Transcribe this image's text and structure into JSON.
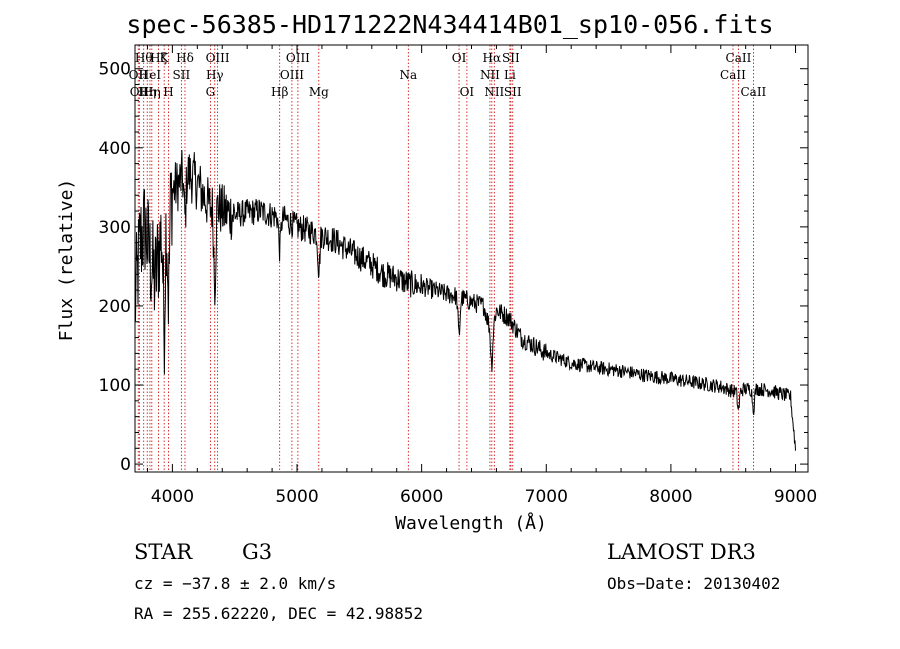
{
  "chart_data": {
    "type": "line",
    "title": "spec-56385-HD171222N434414B01_sp10-056.fits",
    "xlabel": "Wavelength (Å)",
    "ylabel": "Flux (relative)",
    "xlim": [
      3700,
      9100
    ],
    "ylim": [
      -10,
      530
    ],
    "xticks": [
      4000,
      5000,
      6000,
      7000,
      8000,
      9000
    ],
    "xtick_labels": [
      "4000",
      "5000",
      "6000",
      "7000",
      "8000",
      "9000"
    ],
    "yticks": [
      0,
      100,
      200,
      300,
      400,
      500
    ],
    "ytick_labels": [
      "0",
      "100",
      "200",
      "300",
      "400",
      "500"
    ],
    "grid": false,
    "series": [
      {
        "name": "spectrum",
        "x": [
          3700,
          3740,
          3780,
          3820,
          3860,
          3900,
          3950,
          4000,
          4050,
          4100,
          4150,
          4200,
          4250,
          4300,
          4350,
          4400,
          4500,
          4600,
          4700,
          4800,
          4900,
          5000,
          5100,
          5200,
          5300,
          5400,
          5500,
          5600,
          5700,
          5800,
          5900,
          6000,
          6100,
          6200,
          6300,
          6400,
          6500,
          6560,
          6600,
          6700,
          6800,
          6900,
          7000,
          7200,
          7400,
          7600,
          7800,
          8000,
          8200,
          8400,
          8500,
          8600,
          8700,
          8800,
          8900,
          8960,
          9000
        ],
        "y": [
          200,
          280,
          300,
          260,
          230,
          280,
          330,
          345,
          355,
          370,
          365,
          355,
          340,
          325,
          330,
          320,
          315,
          318,
          320,
          315,
          310,
          300,
          295,
          290,
          283,
          272,
          262,
          252,
          240,
          235,
          228,
          225,
          220,
          215,
          212,
          205,
          200,
          165,
          195,
          185,
          160,
          150,
          140,
          128,
          122,
          118,
          112,
          108,
          103,
          98,
          92,
          95,
          95,
          93,
          88,
          85,
          20
        ]
      }
    ],
    "absorption_features": [
      {
        "x": 3934,
        "depth": 140
      },
      {
        "x": 3969,
        "depth": 120
      },
      {
        "x": 4101,
        "depth": 60
      },
      {
        "x": 4340,
        "depth": 100
      },
      {
        "x": 4861,
        "depth": 40
      },
      {
        "x": 5175,
        "depth": 45
      },
      {
        "x": 6300,
        "depth": 50
      },
      {
        "x": 6563,
        "depth": 40
      },
      {
        "x": 8542,
        "depth": 25
      },
      {
        "x": 8662,
        "depth": 25
      }
    ],
    "lines": [
      {
        "x": 3726,
        "label": "OII",
        "row": 2
      },
      {
        "x": 3735,
        "label": "OII",
        "row": 3
      },
      {
        "x": 3770,
        "label": "Hθ",
        "row": 1
      },
      {
        "x": 3798,
        "label": "Hη",
        "row": 3
      },
      {
        "x": 3820,
        "label": "HeI",
        "row": 2
      },
      {
        "x": 3835,
        "label": "Hη",
        "row": 3
      },
      {
        "x": 3889,
        "label": "Hζ",
        "row": 1
      },
      {
        "x": 3934,
        "label": "K",
        "row": 1
      },
      {
        "x": 3969,
        "label": "H",
        "row": 3
      },
      {
        "x": 4072,
        "label": "SII",
        "row": 2
      },
      {
        "x": 4101,
        "label": "Hδ",
        "row": 1
      },
      {
        "x": 4305,
        "label": "G",
        "row": 3
      },
      {
        "x": 4340,
        "label": "Hγ",
        "row": 2
      },
      {
        "x": 4363,
        "label": "OIII",
        "row": 1
      },
      {
        "x": 4861,
        "label": "Hβ",
        "row": 3
      },
      {
        "x": 4959,
        "label": "OIII",
        "row": 2
      },
      {
        "x": 5007,
        "label": "OIII",
        "row": 1
      },
      {
        "x": 5175,
        "label": "Mg",
        "row": 3
      },
      {
        "x": 5893,
        "label": "Na",
        "row": 2
      },
      {
        "x": 6300,
        "label": "OI",
        "row": 1
      },
      {
        "x": 6363,
        "label": "OI",
        "row": 3
      },
      {
        "x": 6548,
        "label": "NII",
        "row": 2
      },
      {
        "x": 6563,
        "label": "Hα",
        "row": 1
      },
      {
        "x": 6583,
        "label": "NII",
        "row": 3
      },
      {
        "x": 6708,
        "label": "Li",
        "row": 2
      },
      {
        "x": 6716,
        "label": "SII",
        "row": 1
      },
      {
        "x": 6731,
        "label": "SII",
        "row": 3
      },
      {
        "x": 8498,
        "label": "CaII",
        "row": 2
      },
      {
        "x": 8542,
        "label": "CaII",
        "row": 1
      },
      {
        "x": 8662,
        "label": "CaII",
        "row": 3
      }
    ]
  },
  "info": {
    "class_label": "STAR",
    "subclass_label": "G3",
    "survey": "LAMOST DR3",
    "cz": "cz = −37.8 ± 2.0 km/s",
    "obs_date": "Obs−Date: 20130402",
    "coords": "RA = 255.62220, DEC =  42.98852"
  }
}
